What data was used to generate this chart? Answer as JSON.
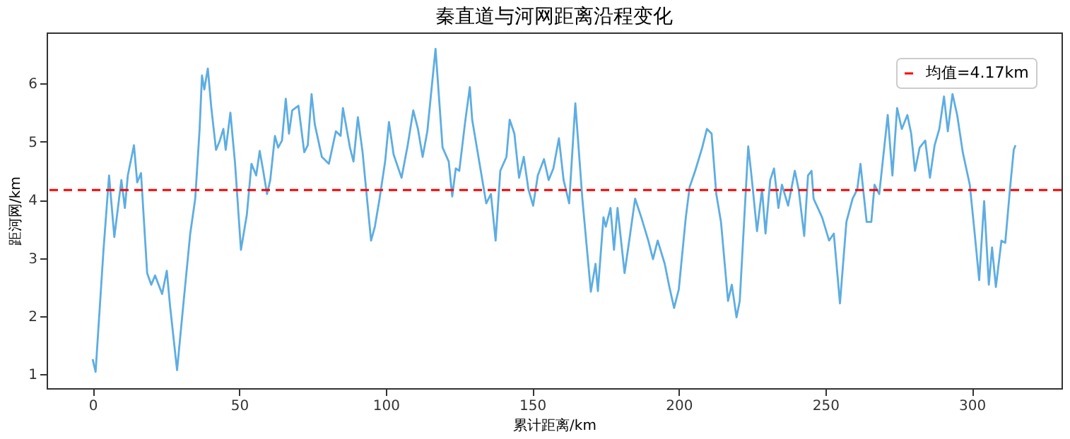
{
  "chart_data": {
    "type": "line",
    "title": "秦直道与河网距离沿程变化",
    "xlabel": "累计距离/km",
    "ylabel": "距河网/km",
    "x": [
      0,
      1,
      3.7,
      5.6,
      7.4,
      9.8,
      11,
      12,
      14.1,
      15.2,
      16.5,
      18.6,
      20,
      21.3,
      23.7,
      25.3,
      26.4,
      28.8,
      30.9,
      33.3,
      35,
      36.5,
      37.3,
      38.1,
      39.3,
      40.5,
      42.1,
      43.4,
      44.6,
      45.4,
      47,
      48.6,
      50.6,
      52.6,
      54.2,
      55.8,
      57,
      58.2,
      59.5,
      60.6,
      62.2,
      63.3,
      64.6,
      65.9,
      67,
      68.1,
      70.2,
      72.2,
      73.4,
      74.7,
      75.8,
      78.2,
      80.6,
      83,
      84.6,
      85.4,
      87.8,
      89,
      90.5,
      92.1,
      95,
      96.3,
      97.9,
      99.8,
      101.1,
      102.7,
      105.4,
      107.5,
      109.4,
      111,
      112.6,
      114.2,
      117,
      119.4,
      121.5,
      122.7,
      123.9,
      125.1,
      127.1,
      128.7,
      129.5,
      131.9,
      134.3,
      135.9,
      137.5,
      139.1,
      141.2,
      142.3,
      143.9,
      145.5,
      147.1,
      148.7,
      150.3,
      151.9,
      154,
      155.6,
      157.2,
      159.1,
      160.7,
      162.6,
      164.7,
      167.1,
      170,
      171.6,
      172.4,
      174.3,
      175.1,
      176.7,
      177.9,
      179.1,
      181.5,
      183.1,
      185.1,
      187.2,
      189.6,
      191.2,
      192.8,
      195.2,
      196.8,
      198.4,
      200,
      202.4,
      203.7,
      205.6,
      208,
      209.6,
      211.2,
      212.8,
      214.4,
      216.8,
      218.1,
      219.7,
      220.8,
      223.7,
      224.8,
      226.7,
      228.4,
      229.6,
      231.2,
      232.5,
      234,
      235.2,
      237.3,
      239.6,
      240.9,
      242.8,
      244.1,
      245.3,
      246,
      248.9,
      251.3,
      252.9,
      255,
      257.2,
      259.3,
      260.9,
      262,
      264.1,
      265.7,
      266.8,
      268.4,
      271.3,
      272.9,
      274.5,
      276.1,
      278,
      279.3,
      280.6,
      282.2,
      284.1,
      285.7,
      287.3,
      288.9,
      290.5,
      291.8,
      293.4,
      295,
      296.9,
      299.3,
      300.9,
      302.5,
      304.2,
      305.8,
      306.9,
      308.2,
      310.1,
      311.4,
      313,
      314.3,
      314.9
    ],
    "series": [
      {
        "color": "#5dade2",
        "values": [
          1.26,
          1.04,
          3.14,
          4.42,
          3.36,
          4.34,
          3.86,
          4.42,
          4.94,
          4.3,
          4.46,
          2.74,
          2.54,
          2.7,
          2.38,
          2.78,
          2.18,
          1.07,
          2.18,
          3.42,
          4.02,
          5.22,
          6.14,
          5.9,
          6.26,
          5.58,
          4.86,
          5.02,
          5.22,
          4.86,
          5.5,
          4.62,
          3.14,
          3.74,
          4.62,
          4.42,
          4.84,
          4.5,
          4.1,
          4.34,
          5.1,
          4.9,
          5.02,
          5.74,
          5.14,
          5.54,
          5.62,
          4.82,
          4.94,
          5.82,
          5.3,
          4.74,
          4.62,
          5.18,
          5.1,
          5.58,
          4.9,
          4.66,
          5.42,
          4.82,
          3.3,
          3.54,
          4.02,
          4.66,
          5.34,
          4.78,
          4.38,
          4.94,
          5.54,
          5.22,
          4.74,
          5.18,
          6.6,
          4.9,
          4.66,
          4.06,
          4.54,
          4.5,
          5.34,
          5.94,
          5.38,
          4.66,
          3.94,
          4.1,
          3.3,
          4.5,
          4.74,
          5.38,
          5.14,
          4.38,
          4.74,
          4.18,
          3.9,
          4.42,
          4.7,
          4.34,
          4.54,
          5.06,
          4.34,
          3.94,
          5.66,
          4.02,
          2.42,
          2.9,
          2.43,
          3.7,
          3.54,
          3.86,
          3.14,
          3.86,
          2.74,
          3.3,
          4.02,
          3.7,
          3.3,
          2.98,
          3.3,
          2.9,
          2.5,
          2.14,
          2.46,
          3.7,
          4.22,
          4.5,
          4.9,
          5.22,
          5.14,
          4.1,
          3.62,
          2.26,
          2.54,
          1.98,
          2.26,
          4.92,
          4.42,
          3.46,
          4.18,
          3.42,
          4.34,
          4.54,
          3.86,
          4.26,
          3.9,
          4.5,
          4.18,
          3.38,
          4.42,
          4.5,
          4.02,
          3.7,
          3.3,
          3.42,
          2.22,
          3.62,
          4.02,
          4.18,
          4.62,
          3.62,
          3.62,
          4.26,
          4.1,
          5.46,
          4.42,
          5.58,
          5.22,
          5.46,
          5.14,
          4.5,
          4.9,
          5.02,
          4.38,
          4.94,
          5.22,
          5.78,
          5.18,
          5.82,
          5.46,
          4.82,
          4.26,
          3.46,
          2.62,
          3.98,
          2.54,
          3.18,
          2.5,
          3.3,
          3.26,
          4.18,
          4.86,
          4.94
        ]
      }
    ],
    "xlim": [
      -15.7,
      330.6
    ],
    "xticks": [
      0,
      50,
      100,
      150,
      200,
      250,
      300
    ],
    "ylim": [
      0.76,
      6.88
    ],
    "yticks": [
      1,
      2,
      3,
      4,
      5,
      6
    ],
    "ref_lines": [
      {
        "axis": "y",
        "value": 4.17,
        "label": "均值=4.17km",
        "color": "#ff0000",
        "line_style": "dashed"
      }
    ],
    "legend": "top right",
    "grid": false
  }
}
